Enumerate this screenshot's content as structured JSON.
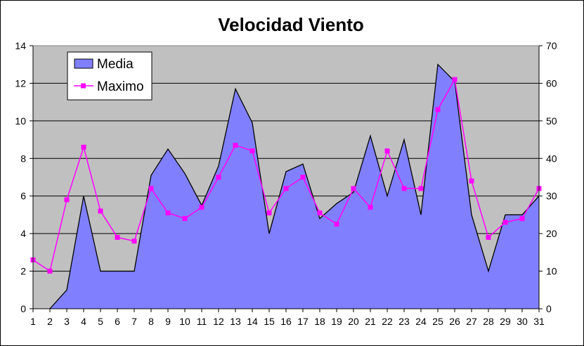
{
  "chart_data": {
    "type": "area",
    "title": "Velocidad Viento",
    "xlabel": "",
    "ylabel": "",
    "categories": [
      "1",
      "2",
      "3",
      "4",
      "5",
      "6",
      "7",
      "8",
      "9",
      "10",
      "11",
      "12",
      "13",
      "14",
      "15",
      "16",
      "17",
      "18",
      "19",
      "20",
      "21",
      "22",
      "23",
      "24",
      "25",
      "26",
      "27",
      "28",
      "29",
      "30",
      "31"
    ],
    "ylim": [
      0,
      14
    ],
    "y_ticks": [
      0,
      2,
      4,
      6,
      8,
      10,
      12,
      14
    ],
    "y2lim": [
      0,
      70
    ],
    "y2_ticks": [
      0,
      10,
      20,
      30,
      40,
      50,
      60,
      70
    ],
    "grid": true,
    "legend": "top-left",
    "plot_background": "#c0c0c0",
    "series": [
      {
        "name": "Media",
        "type": "area",
        "axis": "left",
        "color": "#8080ff",
        "values": [
          null,
          0,
          1,
          6,
          2,
          2,
          2,
          7.1,
          8.5,
          7.2,
          5.5,
          7.6,
          11.7,
          9.9,
          4,
          7.3,
          7.7,
          4.8,
          5.6,
          6.2,
          9.2,
          6,
          9,
          5,
          13,
          12.1,
          5,
          2,
          5,
          5,
          6
        ]
      },
      {
        "name": "Maximo",
        "type": "line",
        "axis": "right",
        "color": "#ff00ff",
        "marker": "square",
        "values": [
          13,
          10,
          29,
          43,
          26,
          19,
          18,
          32,
          25.5,
          24,
          27,
          35,
          43.5,
          42,
          25.5,
          32,
          35,
          25.5,
          22.5,
          32,
          27,
          42,
          32,
          32,
          53,
          61,
          34,
          19,
          23,
          24,
          32
        ]
      }
    ]
  }
}
